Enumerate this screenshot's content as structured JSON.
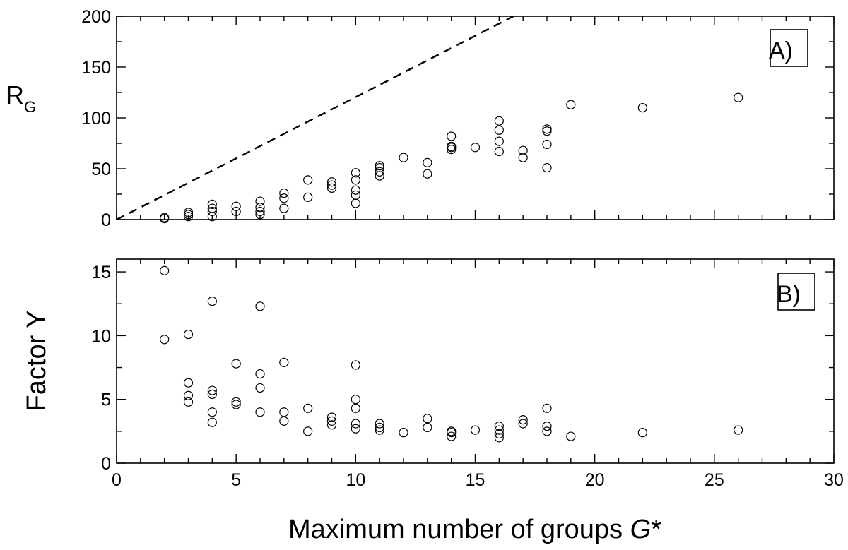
{
  "chart_data": {
    "type": "scatter",
    "xlabel_main": "Maximum number of groups ",
    "xlabel_italic": "G",
    "xlabel_suffix": "*",
    "x_tick_labels": [
      "0",
      "5",
      "10",
      "15",
      "20",
      "25",
      "30"
    ],
    "xlim": [
      0,
      30
    ],
    "panels": [
      {
        "id": "A",
        "label": "A)",
        "ylabel_main": "R",
        "ylabel_sub": "G",
        "ylim": [
          0,
          200
        ],
        "y_ticks": [
          0,
          50,
          100,
          150,
          200
        ],
        "y_tick_labels": [
          "0",
          "50",
          "100",
          "150",
          "200"
        ],
        "reference_line": {
          "style": "dashed",
          "x": [
            0,
            16.6
          ],
          "y": [
            0,
            200
          ]
        },
        "points": [
          [
            2,
            1
          ],
          [
            2,
            2
          ],
          [
            3,
            3
          ],
          [
            3,
            5
          ],
          [
            3,
            7
          ],
          [
            4,
            3
          ],
          [
            4,
            8
          ],
          [
            4,
            11
          ],
          [
            4,
            15
          ],
          [
            5,
            8
          ],
          [
            5,
            13
          ],
          [
            6,
            5
          ],
          [
            6,
            8
          ],
          [
            6,
            12
          ],
          [
            6,
            18
          ],
          [
            7,
            11
          ],
          [
            7,
            21
          ],
          [
            7,
            26
          ],
          [
            8,
            22
          ],
          [
            8,
            39
          ],
          [
            9,
            31
          ],
          [
            9,
            34
          ],
          [
            9,
            37
          ],
          [
            10,
            16
          ],
          [
            10,
            24
          ],
          [
            10,
            29
          ],
          [
            10,
            39
          ],
          [
            10,
            46
          ],
          [
            11,
            43
          ],
          [
            11,
            47
          ],
          [
            11,
            51
          ],
          [
            11,
            53
          ],
          [
            12,
            61
          ],
          [
            13,
            45
          ],
          [
            13,
            56
          ],
          [
            14,
            69
          ],
          [
            14,
            71
          ],
          [
            14,
            72
          ],
          [
            14,
            82
          ],
          [
            15,
            71
          ],
          [
            16,
            67
          ],
          [
            16,
            77
          ],
          [
            16,
            88
          ],
          [
            16,
            97
          ],
          [
            17,
            61
          ],
          [
            17,
            68
          ],
          [
            18,
            51
          ],
          [
            18,
            74
          ],
          [
            18,
            87
          ],
          [
            18,
            89
          ],
          [
            19,
            113
          ],
          [
            22,
            110
          ],
          [
            26,
            120
          ]
        ]
      },
      {
        "id": "B",
        "label": "B)",
        "ylabel_main": "Factor Y",
        "ylim": [
          0,
          16
        ],
        "y_ticks": [
          0,
          5,
          10,
          15
        ],
        "y_tick_labels": [
          "0",
          "5",
          "10",
          "15"
        ],
        "points": [
          [
            2,
            15.1
          ],
          [
            2,
            9.7
          ],
          [
            3,
            10.1
          ],
          [
            3,
            6.3
          ],
          [
            3,
            5.3
          ],
          [
            3,
            4.8
          ],
          [
            4,
            12.7
          ],
          [
            4,
            5.7
          ],
          [
            4,
            5.4
          ],
          [
            4,
            4.0
          ],
          [
            4,
            3.2
          ],
          [
            5,
            7.8
          ],
          [
            5,
            4.8
          ],
          [
            5,
            4.6
          ],
          [
            6,
            12.3
          ],
          [
            6,
            7.0
          ],
          [
            6,
            5.9
          ],
          [
            6,
            4.0
          ],
          [
            7,
            7.9
          ],
          [
            7,
            4.0
          ],
          [
            7,
            3.3
          ],
          [
            8,
            4.3
          ],
          [
            8,
            2.5
          ],
          [
            9,
            3.6
          ],
          [
            9,
            3.3
          ],
          [
            9,
            3.0
          ],
          [
            10,
            7.7
          ],
          [
            10,
            5.0
          ],
          [
            10,
            4.3
          ],
          [
            10,
            3.1
          ],
          [
            10,
            2.7
          ],
          [
            11,
            3.1
          ],
          [
            11,
            2.8
          ],
          [
            11,
            2.6
          ],
          [
            12,
            2.4
          ],
          [
            13,
            3.5
          ],
          [
            13,
            2.8
          ],
          [
            14,
            2.5
          ],
          [
            14,
            2.4
          ],
          [
            14,
            2.1
          ],
          [
            15,
            2.6
          ],
          [
            16,
            2.9
          ],
          [
            16,
            2.6
          ],
          [
            16,
            2.3
          ],
          [
            16,
            2.0
          ],
          [
            17,
            3.4
          ],
          [
            17,
            3.1
          ],
          [
            18,
            4.3
          ],
          [
            18,
            2.9
          ],
          [
            18,
            2.5
          ],
          [
            19,
            2.1
          ],
          [
            22,
            2.4
          ],
          [
            26,
            2.6
          ]
        ]
      }
    ]
  }
}
